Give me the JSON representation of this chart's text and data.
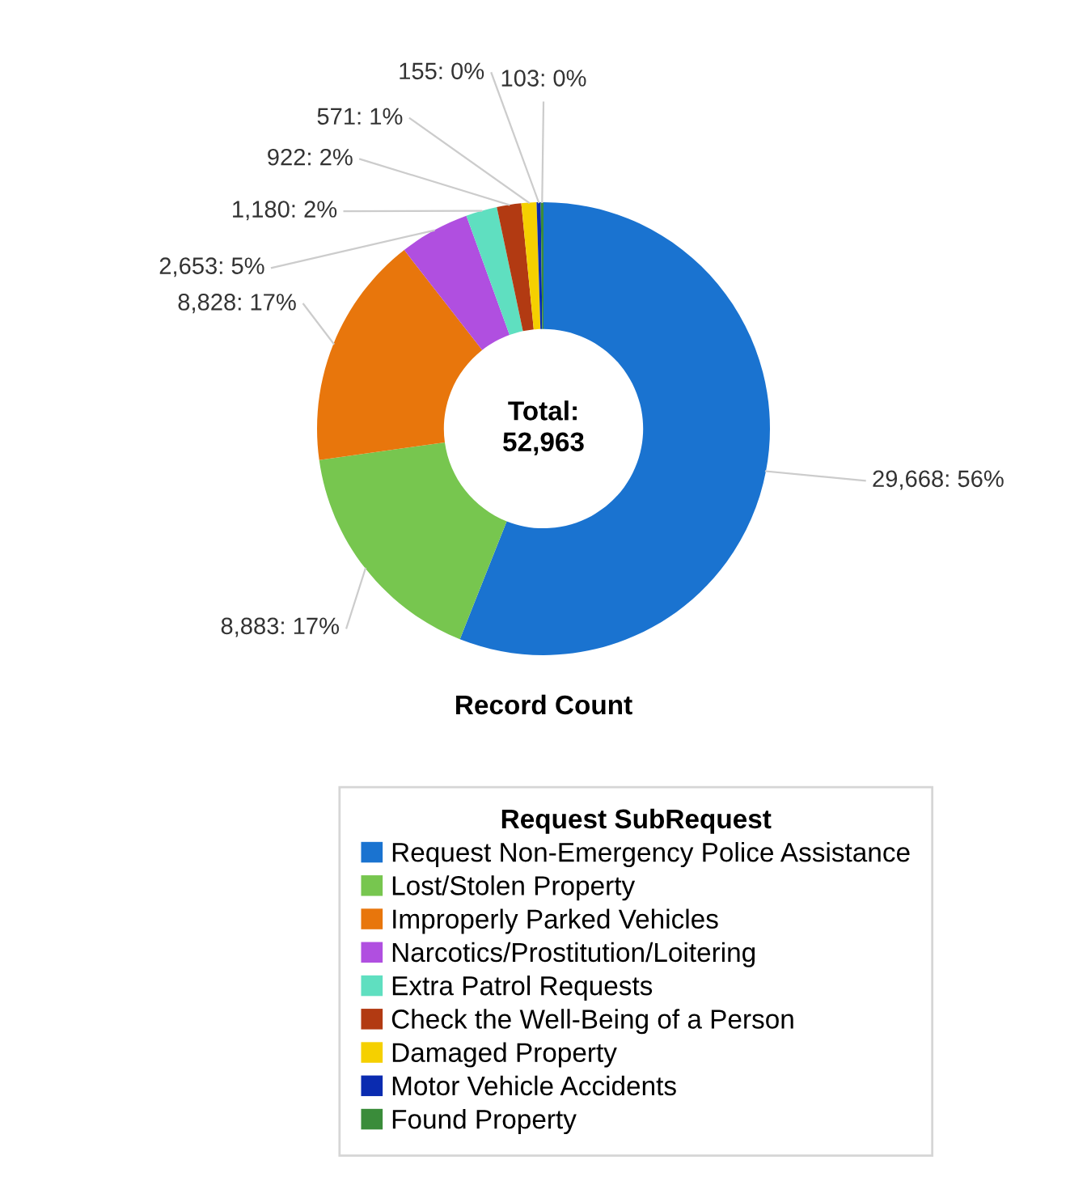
{
  "chart_data": {
    "type": "donut",
    "xlabel": "Record Count",
    "legend_title": "Request SubRequest",
    "legend": "bottom",
    "categories": [
      "Request Non-Emergency Police Assistance",
      "Lost/Stolen Property",
      "Improperly Parked Vehicles",
      "Narcotics/Prostitution/Loitering",
      "Extra Patrol Requests",
      "Check the Well-Being of a Person",
      "Damaged Property",
      "Motor Vehicle Accidents",
      "Found Property"
    ],
    "values": [
      29668,
      8883,
      8828,
      2653,
      1180,
      922,
      571,
      155,
      103
    ],
    "value_labels": [
      "29,668: 56%",
      "8,883: 17%",
      "8,828: 17%",
      "2,653: 5%",
      "1,180: 2%",
      "922: 2%",
      "571: 1%",
      "155: 0%",
      "103: 0%"
    ],
    "colors": [
      "#1a73d0",
      "#77c64f",
      "#e8760c",
      "#b04fe0",
      "#5fdfc0",
      "#b23a12",
      "#f5d000",
      "#0a2bb0",
      "#3a8c3a"
    ],
    "annotations": [
      "Total:\n52,963"
    ]
  }
}
